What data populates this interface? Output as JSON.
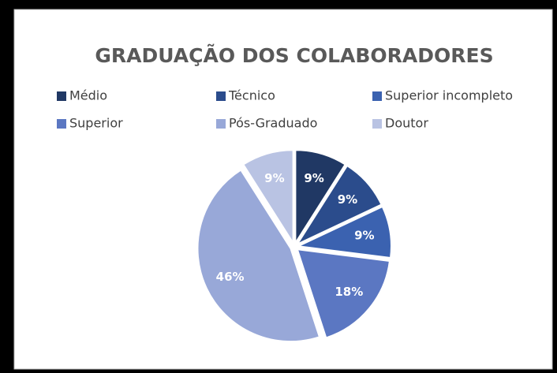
{
  "chart_data": {
    "type": "pie",
    "title": "GRADUAÇÃO DOS COLABORADORES",
    "categories": [
      "Médio",
      "Técnico",
      "Superior incompleto",
      "Superior",
      "Pós-Graduado",
      "Doutor"
    ],
    "values": [
      9,
      9,
      9,
      18,
      46,
      9
    ],
    "value_labels": [
      "9%",
      "9%",
      "9%",
      "18%",
      "46%",
      "9%"
    ],
    "colors": [
      "#203864",
      "#2b4c8c",
      "#3b62b0",
      "#5b77c2",
      "#98a8d8",
      "#b9c3e3"
    ],
    "legend": "top"
  }
}
